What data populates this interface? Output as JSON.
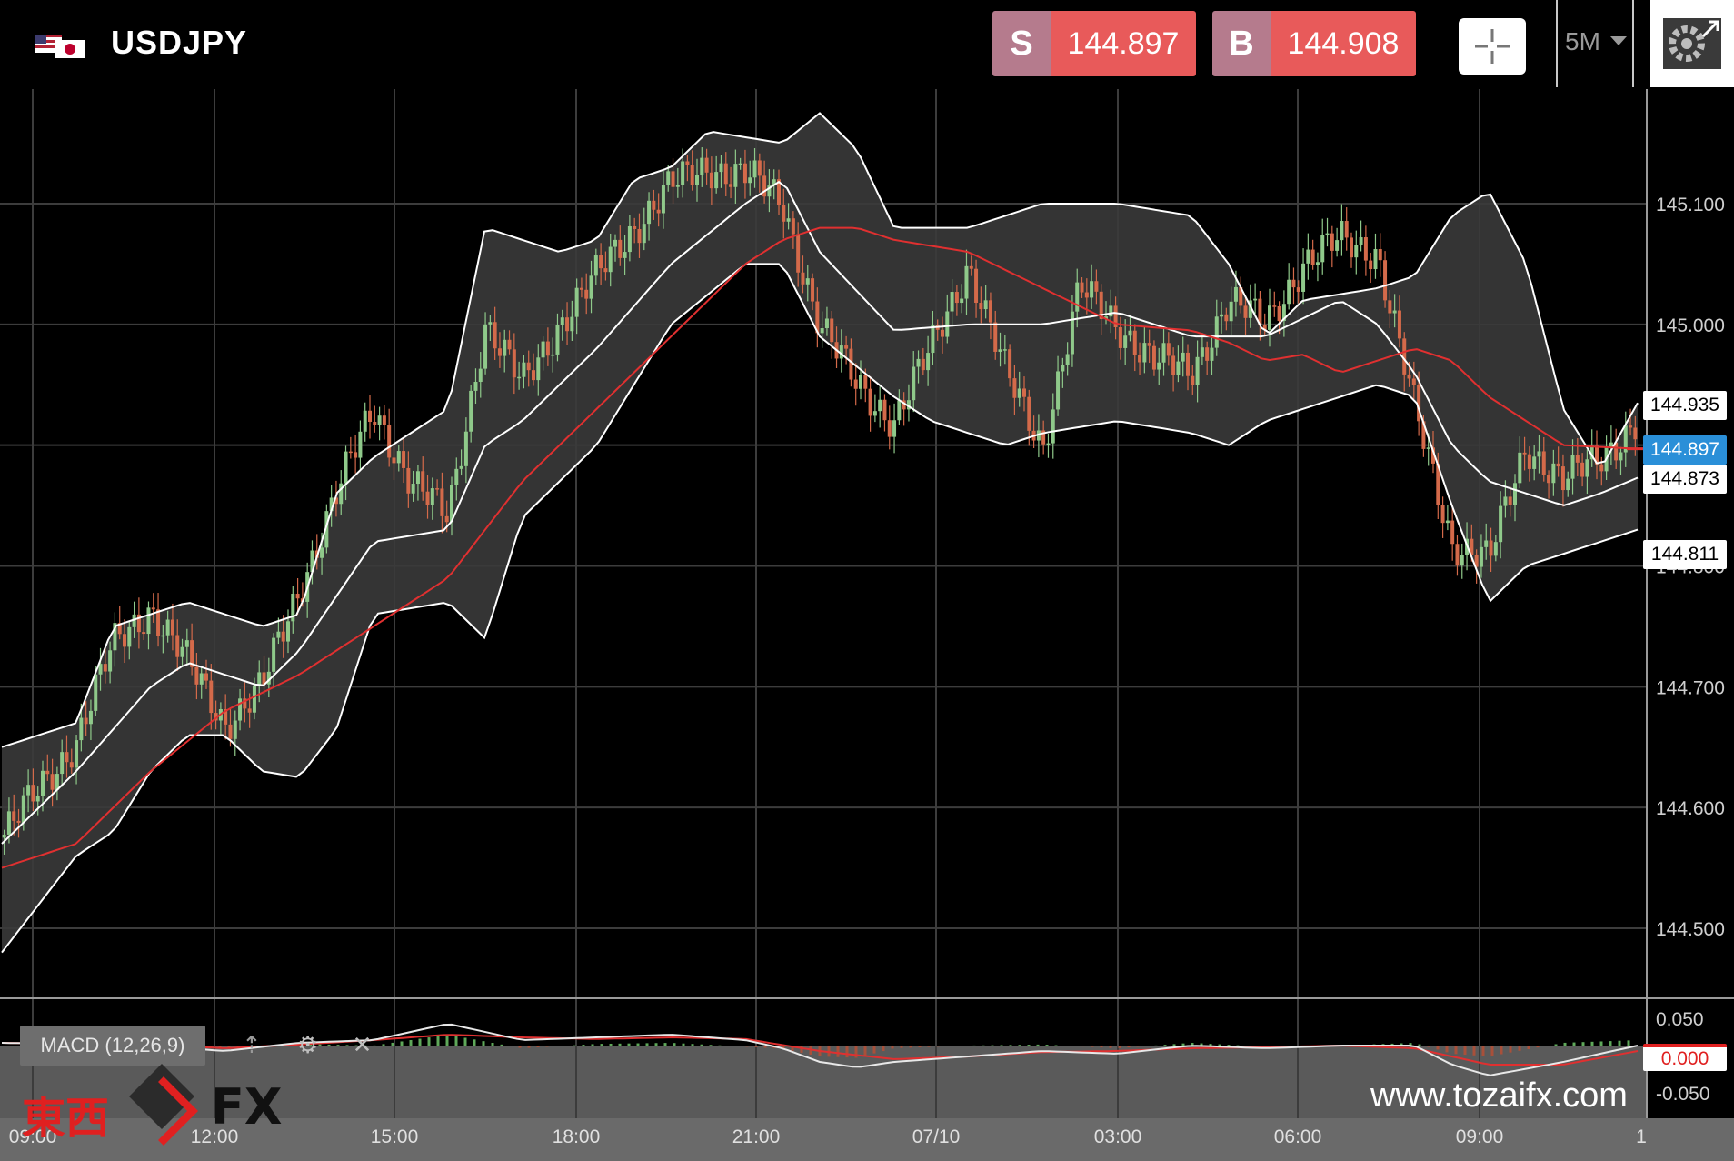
{
  "header": {
    "flag_icon": "us-jp-flag-icon",
    "symbol": "USDJPY",
    "sell": {
      "label": "S",
      "price": "144.897"
    },
    "buy": {
      "label": "B",
      "price": "144.908"
    },
    "timeframe": "5M",
    "crosshair_icon": "crosshair-icon",
    "settings_icon": "gear-icon"
  },
  "colors": {
    "background": "#000000",
    "band_fill": "#3a3a3a",
    "band_line": "#ffffff",
    "ma_line": "#e03030",
    "candle_up": "#8fc98a",
    "candle_down": "#d46a4a",
    "sell_button": "#e85a5a",
    "buy_button": "#e85a5a",
    "button_label": "#b57b8d",
    "current_price_badge": "#2a8fd8"
  },
  "chart_data": [
    {
      "type": "candlestick",
      "symbol": "USDJPY",
      "timeframe": "5M",
      "indicators": [
        "Bollinger Bands",
        "Moving Average"
      ],
      "x_ticks": [
        "09:00",
        "12:00",
        "15:00",
        "18:00",
        "21:00",
        "07/10",
        "03:00",
        "06:00",
        "09:00",
        "1"
      ],
      "y_ticks": [
        "145.100",
        "145.000",
        "144.900",
        "144.800",
        "144.700",
        "144.600",
        "144.500"
      ],
      "y_tick_values": [
        145.1,
        145.0,
        144.9,
        144.8,
        144.7,
        144.6,
        144.5
      ],
      "ylim": [
        144.43,
        145.19
      ],
      "grid": true,
      "price_badges": [
        {
          "value": "144.935",
          "style": "white"
        },
        {
          "value": "144.897",
          "style": "blue"
        },
        {
          "value": "144.873",
          "style": "white"
        },
        {
          "value": "144.811",
          "style": "white"
        }
      ],
      "close_series": [
        {
          "t": 0,
          "v": 144.575
        },
        {
          "t": 0.5,
          "v": 144.615
        },
        {
          "t": 1,
          "v": 144.655
        },
        {
          "t": 1.5,
          "v": 144.735
        },
        {
          "t": 2,
          "v": 144.765
        },
        {
          "t": 2.5,
          "v": 144.72
        },
        {
          "t": 3,
          "v": 144.67
        },
        {
          "t": 3.5,
          "v": 144.7
        },
        {
          "t": 4,
          "v": 144.78
        },
        {
          "t": 4.5,
          "v": 144.86
        },
        {
          "t": 5,
          "v": 144.93
        },
        {
          "t": 5.5,
          "v": 144.87
        },
        {
          "t": 6,
          "v": 144.84
        },
        {
          "t": 6.5,
          "v": 145.0
        },
        {
          "t": 7,
          "v": 144.95
        },
        {
          "t": 7.5,
          "v": 145.0
        },
        {
          "t": 8,
          "v": 145.04
        },
        {
          "t": 8.5,
          "v": 145.08
        },
        {
          "t": 9,
          "v": 145.115
        },
        {
          "t": 9.5,
          "v": 145.13
        },
        {
          "t": 10,
          "v": 145.125
        },
        {
          "t": 10.5,
          "v": 145.1
        },
        {
          "t": 11,
          "v": 145.0
        },
        {
          "t": 11.5,
          "v": 144.95
        },
        {
          "t": 12,
          "v": 144.92
        },
        {
          "t": 12.5,
          "v": 144.98
        },
        {
          "t": 13,
          "v": 145.05
        },
        {
          "t": 13.5,
          "v": 144.96
        },
        {
          "t": 14,
          "v": 144.9
        },
        {
          "t": 14.5,
          "v": 145.03
        },
        {
          "t": 15,
          "v": 145.0
        },
        {
          "t": 15.5,
          "v": 144.97
        },
        {
          "t": 16,
          "v": 144.96
        },
        {
          "t": 16.5,
          "v": 145.02
        },
        {
          "t": 17,
          "v": 145.0
        },
        {
          "t": 17.5,
          "v": 145.05
        },
        {
          "t": 18,
          "v": 145.07
        },
        {
          "t": 18.5,
          "v": 145.06
        },
        {
          "t": 19,
          "v": 144.93
        },
        {
          "t": 19.5,
          "v": 144.82
        },
        {
          "t": 20,
          "v": 144.805
        },
        {
          "t": 20.5,
          "v": 144.9
        },
        {
          "t": 21,
          "v": 144.87
        },
        {
          "t": 21.5,
          "v": 144.89
        },
        {
          "t": 22,
          "v": 144.92
        }
      ],
      "upper_band": [
        {
          "t": 0,
          "v": 144.65
        },
        {
          "t": 1,
          "v": 144.67
        },
        {
          "t": 1.5,
          "v": 144.75
        },
        {
          "t": 2.5,
          "v": 144.77
        },
        {
          "t": 3.5,
          "v": 144.75
        },
        {
          "t": 4,
          "v": 144.76
        },
        {
          "t": 4.5,
          "v": 144.86
        },
        {
          "t": 5,
          "v": 144.89
        },
        {
          "t": 6,
          "v": 144.93
        },
        {
          "t": 6.5,
          "v": 145.08
        },
        {
          "t": 7,
          "v": 145.07
        },
        {
          "t": 7.5,
          "v": 145.06
        },
        {
          "t": 8,
          "v": 145.07
        },
        {
          "t": 8.5,
          "v": 145.12
        },
        {
          "t": 9,
          "v": 145.13
        },
        {
          "t": 9.5,
          "v": 145.16
        },
        {
          "t": 10,
          "v": 145.155
        },
        {
          "t": 10.5,
          "v": 145.15
        },
        {
          "t": 11,
          "v": 145.175
        },
        {
          "t": 11.5,
          "v": 145.145
        },
        {
          "t": 12,
          "v": 145.08
        },
        {
          "t": 13,
          "v": 145.08
        },
        {
          "t": 14,
          "v": 145.1
        },
        {
          "t": 15,
          "v": 145.1
        },
        {
          "t": 16,
          "v": 145.09
        },
        {
          "t": 16.5,
          "v": 145.05
        },
        {
          "t": 17,
          "v": 144.99
        },
        {
          "t": 17.5,
          "v": 145.02
        },
        {
          "t": 18.5,
          "v": 145.03
        },
        {
          "t": 19,
          "v": 145.04
        },
        {
          "t": 19.5,
          "v": 145.09
        },
        {
          "t": 20,
          "v": 145.11
        },
        {
          "t": 20.5,
          "v": 145.05
        },
        {
          "t": 21,
          "v": 144.93
        },
        {
          "t": 21.5,
          "v": 144.88
        },
        {
          "t": 22,
          "v": 144.935
        }
      ],
      "middle_band": [
        {
          "t": 0,
          "v": 144.57
        },
        {
          "t": 1,
          "v": 144.63
        },
        {
          "t": 2,
          "v": 144.7
        },
        {
          "t": 2.5,
          "v": 144.72
        },
        {
          "t": 3.5,
          "v": 144.7
        },
        {
          "t": 4,
          "v": 144.73
        },
        {
          "t": 5,
          "v": 144.82
        },
        {
          "t": 6,
          "v": 144.83
        },
        {
          "t": 6.5,
          "v": 144.9
        },
        {
          "t": 7,
          "v": 144.92
        },
        {
          "t": 8,
          "v": 144.98
        },
        {
          "t": 9,
          "v": 145.05
        },
        {
          "t": 10,
          "v": 145.1
        },
        {
          "t": 10.5,
          "v": 145.12
        },
        {
          "t": 11,
          "v": 145.06
        },
        {
          "t": 12,
          "v": 144.995
        },
        {
          "t": 13,
          "v": 145.0
        },
        {
          "t": 14,
          "v": 145.0
        },
        {
          "t": 15,
          "v": 145.01
        },
        {
          "t": 16,
          "v": 144.99
        },
        {
          "t": 17,
          "v": 144.99
        },
        {
          "t": 18,
          "v": 145.02
        },
        {
          "t": 18.5,
          "v": 145.0
        },
        {
          "t": 19,
          "v": 144.96
        },
        {
          "t": 19.5,
          "v": 144.9
        },
        {
          "t": 20,
          "v": 144.87
        },
        {
          "t": 21,
          "v": 144.85
        },
        {
          "t": 21.5,
          "v": 144.86
        },
        {
          "t": 22,
          "v": 144.873
        }
      ],
      "lower_band": [
        {
          "t": 0,
          "v": 144.48
        },
        {
          "t": 1,
          "v": 144.56
        },
        {
          "t": 1.5,
          "v": 144.58
        },
        {
          "t": 2,
          "v": 144.63
        },
        {
          "t": 2.5,
          "v": 144.66
        },
        {
          "t": 3,
          "v": 144.66
        },
        {
          "t": 3.5,
          "v": 144.63
        },
        {
          "t": 4,
          "v": 144.625
        },
        {
          "t": 4.5,
          "v": 144.665
        },
        {
          "t": 5,
          "v": 144.76
        },
        {
          "t": 6,
          "v": 144.77
        },
        {
          "t": 6.5,
          "v": 144.74
        },
        {
          "t": 7,
          "v": 144.84
        },
        {
          "t": 8,
          "v": 144.9
        },
        {
          "t": 9,
          "v": 145.0
        },
        {
          "t": 10,
          "v": 145.05
        },
        {
          "t": 10.5,
          "v": 145.05
        },
        {
          "t": 11,
          "v": 144.99
        },
        {
          "t": 12,
          "v": 144.94
        },
        {
          "t": 12.5,
          "v": 144.92
        },
        {
          "t": 13,
          "v": 144.91
        },
        {
          "t": 13.5,
          "v": 144.9
        },
        {
          "t": 14,
          "v": 144.91
        },
        {
          "t": 15,
          "v": 144.92
        },
        {
          "t": 16,
          "v": 144.91
        },
        {
          "t": 16.5,
          "v": 144.9
        },
        {
          "t": 17,
          "v": 144.92
        },
        {
          "t": 18,
          "v": 144.94
        },
        {
          "t": 18.5,
          "v": 144.95
        },
        {
          "t": 19,
          "v": 144.94
        },
        {
          "t": 19.5,
          "v": 144.85
        },
        {
          "t": 20,
          "v": 144.77
        },
        {
          "t": 20.5,
          "v": 144.8
        },
        {
          "t": 21,
          "v": 144.81
        },
        {
          "t": 22,
          "v": 144.83
        }
      ],
      "moving_average": [
        {
          "t": 0,
          "v": 144.55
        },
        {
          "t": 1,
          "v": 144.57
        },
        {
          "t": 2,
          "v": 144.63
        },
        {
          "t": 3,
          "v": 144.68
        },
        {
          "t": 4,
          "v": 144.71
        },
        {
          "t": 5,
          "v": 144.75
        },
        {
          "t": 6,
          "v": 144.79
        },
        {
          "t": 7,
          "v": 144.87
        },
        {
          "t": 8,
          "v": 144.93
        },
        {
          "t": 9,
          "v": 144.99
        },
        {
          "t": 10,
          "v": 145.05
        },
        {
          "t": 10.5,
          "v": 145.07
        },
        {
          "t": 11,
          "v": 145.08
        },
        {
          "t": 11.5,
          "v": 145.08
        },
        {
          "t": 12,
          "v": 145.07
        },
        {
          "t": 13,
          "v": 145.06
        },
        {
          "t": 14,
          "v": 145.03
        },
        {
          "t": 15,
          "v": 145.0
        },
        {
          "t": 16,
          "v": 144.995
        },
        {
          "t": 16.5,
          "v": 144.985
        },
        {
          "t": 17,
          "v": 144.97
        },
        {
          "t": 17.5,
          "v": 144.975
        },
        {
          "t": 18,
          "v": 144.96
        },
        {
          "t": 18.5,
          "v": 144.97
        },
        {
          "t": 19,
          "v": 144.98
        },
        {
          "t": 19.5,
          "v": 144.97
        },
        {
          "t": 20,
          "v": 144.94
        },
        {
          "t": 21,
          "v": 144.9
        },
        {
          "t": 22,
          "v": 144.897
        }
      ]
    },
    {
      "type": "line",
      "name": "MACD (12,26,9)",
      "y_ticks": [
        "0.050",
        "0.000",
        "-0.050"
      ],
      "ylim": [
        -0.06,
        0.06
      ],
      "value_badge": "0.000",
      "macd_line": [
        {
          "t": 0,
          "v": 0.005
        },
        {
          "t": 2,
          "v": 0.0
        },
        {
          "t": 3,
          "v": -0.01
        },
        {
          "t": 4,
          "v": 0.005
        },
        {
          "t": 5,
          "v": 0.01
        },
        {
          "t": 6,
          "v": 0.04
        },
        {
          "t": 7,
          "v": 0.01
        },
        {
          "t": 8,
          "v": 0.015
        },
        {
          "t": 9,
          "v": 0.02
        },
        {
          "t": 10,
          "v": 0.01
        },
        {
          "t": 10.5,
          "v": -0.005
        },
        {
          "t": 11,
          "v": -0.03
        },
        {
          "t": 11.5,
          "v": -0.04
        },
        {
          "t": 12,
          "v": -0.03
        },
        {
          "t": 13,
          "v": -0.02
        },
        {
          "t": 14,
          "v": -0.01
        },
        {
          "t": 15,
          "v": -0.015
        },
        {
          "t": 16,
          "v": 0.0
        },
        {
          "t": 17,
          "v": -0.005
        },
        {
          "t": 18,
          "v": 0.0
        },
        {
          "t": 19,
          "v": 0.0
        },
        {
          "t": 19.5,
          "v": -0.035
        },
        {
          "t": 20,
          "v": -0.055
        },
        {
          "t": 21,
          "v": -0.03
        },
        {
          "t": 22,
          "v": 0.0
        }
      ],
      "signal_line": [
        {
          "t": 0,
          "v": 0.005
        },
        {
          "t": 2,
          "v": 0.002
        },
        {
          "t": 3,
          "v": -0.005
        },
        {
          "t": 4,
          "v": 0.002
        },
        {
          "t": 5,
          "v": 0.01
        },
        {
          "t": 6,
          "v": 0.02
        },
        {
          "t": 7,
          "v": 0.015
        },
        {
          "t": 8,
          "v": 0.012
        },
        {
          "t": 9,
          "v": 0.015
        },
        {
          "t": 10,
          "v": 0.012
        },
        {
          "t": 11,
          "v": -0.01
        },
        {
          "t": 12,
          "v": -0.025
        },
        {
          "t": 13,
          "v": -0.02
        },
        {
          "t": 14,
          "v": -0.012
        },
        {
          "t": 15,
          "v": -0.01
        },
        {
          "t": 16,
          "v": -0.005
        },
        {
          "t": 17,
          "v": -0.003
        },
        {
          "t": 18,
          "v": 0.0
        },
        {
          "t": 19,
          "v": -0.005
        },
        {
          "t": 20,
          "v": -0.035
        },
        {
          "t": 21,
          "v": -0.035
        },
        {
          "t": 22,
          "v": -0.01
        }
      ]
    }
  ],
  "macd_panel": {
    "label": "MACD (12,26,9)",
    "arrow_icon": "up-arrow-icon",
    "settings_icon": "gear-icon",
    "close_icon": "close-icon"
  },
  "branding": {
    "logo_cn": "東西",
    "logo_fx": "FX",
    "watermark": "www.tozaifx.com"
  }
}
